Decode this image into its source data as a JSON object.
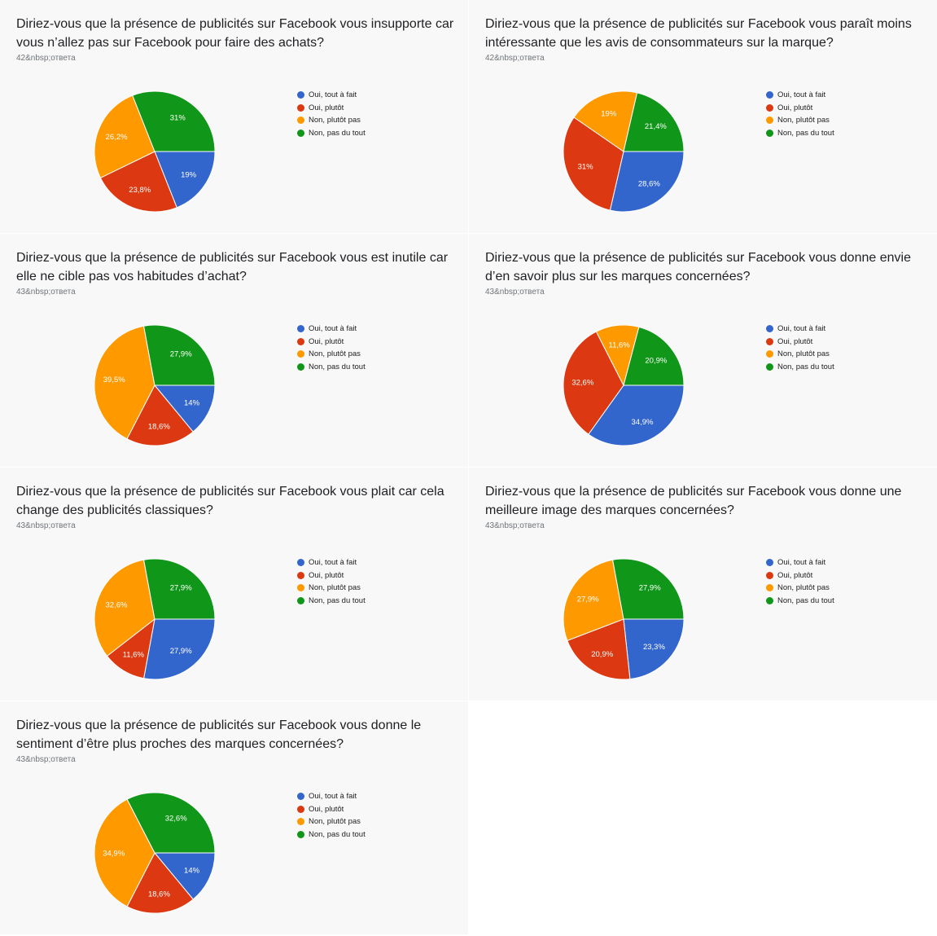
{
  "colors": {
    "oui_tout": "#3366cc",
    "oui_plutot": "#dc3912",
    "non_plutot": "#ff9900",
    "non_pas": "#109618"
  },
  "legend": [
    "Oui, tout à fait",
    "Oui, plutôt",
    "Non, plutôt pas",
    "Non, pas du tout"
  ],
  "chart_data": [
    {
      "type": "pie",
      "title": "Diriez-vous que la présence de publicités sur Facebook  vous insupporte car vous n’allez pas sur Facebook pour faire des achats?",
      "subtitle": "42&nbsp;ответа",
      "categories": [
        "Oui, tout à fait",
        "Oui, plutôt",
        "Non, plutôt pas",
        "Non, pas du tout"
      ],
      "values": [
        19,
        23.8,
        26.2,
        31
      ],
      "labels": [
        "19%",
        "23,8%",
        "26,2%",
        "31%"
      ],
      "legend_position": "right"
    },
    {
      "type": "pie",
      "title": "Diriez-vous que la présence de publicités sur Facebook  vous paraît moins intéressante que les avis de consommateurs sur la marque?",
      "subtitle": "42&nbsp;ответа",
      "categories": [
        "Oui, tout à fait",
        "Oui, plutôt",
        "Non, plutôt pas",
        "Non, pas du tout"
      ],
      "values": [
        28.6,
        31,
        19,
        21.4
      ],
      "labels": [
        "28,6%",
        "31%",
        "19%",
        "21,4%"
      ],
      "legend_position": "right"
    },
    {
      "type": "pie",
      "title": "Diriez-vous que la présence de publicités sur Facebook  vous est inutile car elle ne cible pas vos habitudes d’achat?",
      "subtitle": "43&nbsp;ответа",
      "categories": [
        "Oui, tout à fait",
        "Oui, plutôt",
        "Non, plutôt pas",
        "Non, pas du tout"
      ],
      "values": [
        14,
        18.6,
        39.5,
        27.9
      ],
      "labels": [
        "14%",
        "18,6%",
        "39,5%",
        "27,9%"
      ],
      "legend_position": "right"
    },
    {
      "type": "pie",
      "title": "Diriez-vous que la présence de publicités sur Facebook  vous donne envie d’en savoir plus sur les marques concernées?",
      "subtitle": "43&nbsp;ответа",
      "categories": [
        "Oui, tout à fait",
        "Oui, plutôt",
        "Non, plutôt pas",
        "Non, pas du tout"
      ],
      "values": [
        34.9,
        32.6,
        11.6,
        20.9
      ],
      "labels": [
        "34,9%",
        "32,6%",
        "11,6%",
        "20,9%"
      ],
      "legend_position": "right"
    },
    {
      "type": "pie",
      "title": "Diriez-vous que la présence de publicités sur Facebook  vous plait car cela change des publicités classiques?",
      "subtitle": "43&nbsp;ответа",
      "categories": [
        "Oui, tout à fait",
        "Oui, plutôt",
        "Non, plutôt pas",
        "Non, pas du tout"
      ],
      "values": [
        27.9,
        11.6,
        32.6,
        27.9
      ],
      "labels": [
        "27,9%",
        "11,6%",
        "32,6%",
        "27,9%"
      ],
      "legend_position": "right"
    },
    {
      "type": "pie",
      "title": "Diriez-vous que la présence de publicités sur Facebook  vous donne une meilleure image des marques concernées?",
      "subtitle": "43&nbsp;ответа",
      "categories": [
        "Oui, tout à fait",
        "Oui, plutôt",
        "Non, plutôt pas",
        "Non, pas du tout"
      ],
      "values": [
        23.3,
        20.9,
        27.9,
        27.9
      ],
      "labels": [
        "23,3%",
        "20,9%",
        "27,9%",
        "27,9%"
      ],
      "legend_position": "right"
    },
    {
      "type": "pie",
      "title": "Diriez-vous que la présence de publicités sur Facebook  vous donne le sentiment d’être plus proches des marques concernées?",
      "subtitle": "43&nbsp;ответа",
      "categories": [
        "Oui, tout à fait",
        "Oui, plutôt",
        "Non, plutôt pas",
        "Non, pas du tout"
      ],
      "values": [
        14,
        18.6,
        34.9,
        32.6
      ],
      "labels": [
        "14%",
        "18,6%",
        "34,9%",
        "32,6%"
      ],
      "legend_position": "right"
    }
  ]
}
